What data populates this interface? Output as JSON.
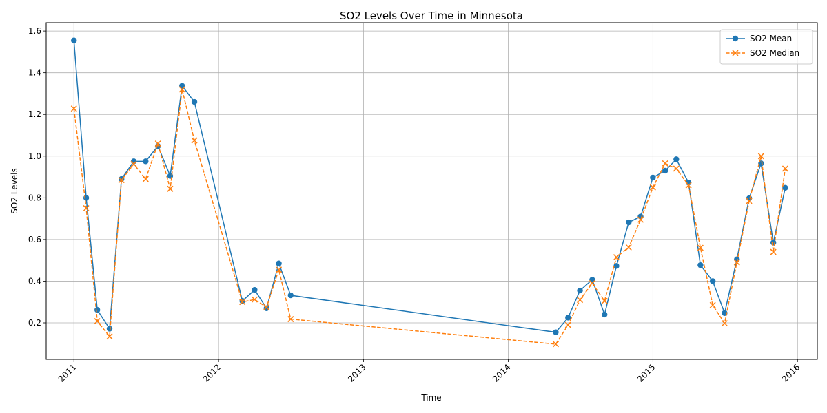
{
  "chart_data": {
    "type": "line",
    "title": "SO2 Levels Over Time in Minnesota",
    "xlabel": "Time",
    "ylabel": "SO2 Levels",
    "xlim": [
      "2010-10-23",
      "2016-02-20"
    ],
    "ylim": [
      0.025,
      1.64
    ],
    "x_ticks": [
      "2011",
      "2012",
      "2013",
      "2014",
      "2015",
      "2016"
    ],
    "y_ticks": [
      "0.2",
      "0.4",
      "0.6",
      "0.8",
      "1.0",
      "1.2",
      "1.4",
      "1.6"
    ],
    "grid": true,
    "legend_position": "top-right",
    "series": [
      {
        "name": "SO2 Mean",
        "color": "#1f77b4",
        "line_style": "solid",
        "marker": "circle",
        "points": [
          [
            "2011-01-01",
            1.555
          ],
          [
            "2011-02-01",
            0.8
          ],
          [
            "2011-03-01",
            0.262
          ],
          [
            "2011-04-01",
            0.172
          ],
          [
            "2011-05-01",
            0.89
          ],
          [
            "2011-06-01",
            0.975
          ],
          [
            "2011-07-01",
            0.975
          ],
          [
            "2011-08-01",
            1.048
          ],
          [
            "2011-09-01",
            0.905
          ],
          [
            "2011-10-01",
            1.337
          ],
          [
            "2011-11-01",
            1.26
          ],
          [
            "2012-03-01",
            0.305
          ],
          [
            "2012-04-01",
            0.358
          ],
          [
            "2012-05-01",
            0.27
          ],
          [
            "2012-06-01",
            0.485
          ],
          [
            "2012-07-01",
            0.332
          ],
          [
            "2014-05-01",
            0.155
          ],
          [
            "2014-06-01",
            0.225
          ],
          [
            "2014-07-01",
            0.355
          ],
          [
            "2014-08-01",
            0.407
          ],
          [
            "2014-09-01",
            0.24
          ],
          [
            "2014-10-01",
            0.473
          ],
          [
            "2014-11-01",
            0.682
          ],
          [
            "2014-12-01",
            0.71
          ],
          [
            "2015-01-01",
            0.897
          ],
          [
            "2015-02-01",
            0.93
          ],
          [
            "2015-03-01",
            0.985
          ],
          [
            "2015-04-01",
            0.873
          ],
          [
            "2015-05-01",
            0.477
          ],
          [
            "2015-06-01",
            0.4
          ],
          [
            "2015-07-01",
            0.247
          ],
          [
            "2015-08-01",
            0.505
          ],
          [
            "2015-09-01",
            0.798
          ],
          [
            "2015-10-01",
            0.965
          ],
          [
            "2015-11-01",
            0.585
          ],
          [
            "2015-12-01",
            0.848
          ]
        ]
      },
      {
        "name": "SO2 Median",
        "color": "#ff7f0e",
        "line_style": "dashed",
        "marker": "x",
        "points": [
          [
            "2011-01-01",
            1.228
          ],
          [
            "2011-02-01",
            0.75
          ],
          [
            "2011-03-01",
            0.208
          ],
          [
            "2011-04-01",
            0.135
          ],
          [
            "2011-05-01",
            0.885
          ],
          [
            "2011-06-01",
            0.962
          ],
          [
            "2011-07-01",
            0.89
          ],
          [
            "2011-08-01",
            1.06
          ],
          [
            "2011-09-01",
            0.843
          ],
          [
            "2011-10-01",
            1.32
          ],
          [
            "2011-11-01",
            1.075
          ],
          [
            "2012-03-01",
            0.3
          ],
          [
            "2012-04-01",
            0.312
          ],
          [
            "2012-05-01",
            0.275
          ],
          [
            "2012-06-01",
            0.455
          ],
          [
            "2012-07-01",
            0.218
          ],
          [
            "2014-05-01",
            0.098
          ],
          [
            "2014-06-01",
            0.19
          ],
          [
            "2014-07-01",
            0.31
          ],
          [
            "2014-08-01",
            0.39
          ],
          [
            "2014-09-01",
            0.305
          ],
          [
            "2014-10-01",
            0.515
          ],
          [
            "2014-11-01",
            0.562
          ],
          [
            "2014-12-01",
            0.695
          ],
          [
            "2015-01-01",
            0.85
          ],
          [
            "2015-02-01",
            0.965
          ],
          [
            "2015-03-01",
            0.94
          ],
          [
            "2015-04-01",
            0.86
          ],
          [
            "2015-05-01",
            0.56
          ],
          [
            "2015-06-01",
            0.285
          ],
          [
            "2015-07-01",
            0.198
          ],
          [
            "2015-08-01",
            0.49
          ],
          [
            "2015-09-01",
            0.785
          ],
          [
            "2015-10-01",
            1.0
          ],
          [
            "2015-11-01",
            0.54
          ],
          [
            "2015-12-01",
            0.94
          ]
        ]
      }
    ]
  }
}
